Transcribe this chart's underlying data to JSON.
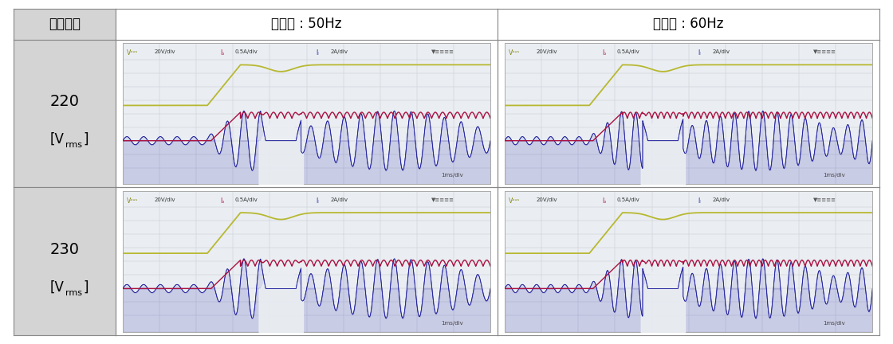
{
  "col_headers": [
    "입력전압",
    "주파수 : 50Hz",
    "주파수 : 60Hz"
  ],
  "row_labels": [
    "220",
    "230"
  ],
  "header_bg": "#d4d4d4",
  "label_bg": "#d4d4d4",
  "border_color": "#888888",
  "header_font_size": 12,
  "label_font_size": 13,
  "scope_bg": "#eaeef2",
  "grid_color": "#c8cdd4",
  "green_color": "#b8b830",
  "red_color": "#aa1040",
  "blue_color": "#1a1a99",
  "blue_fill": "#3333aa",
  "text_color_scope": "#444444",
  "fig_bg": "#ffffff",
  "font_family": "Malgun Gothic"
}
